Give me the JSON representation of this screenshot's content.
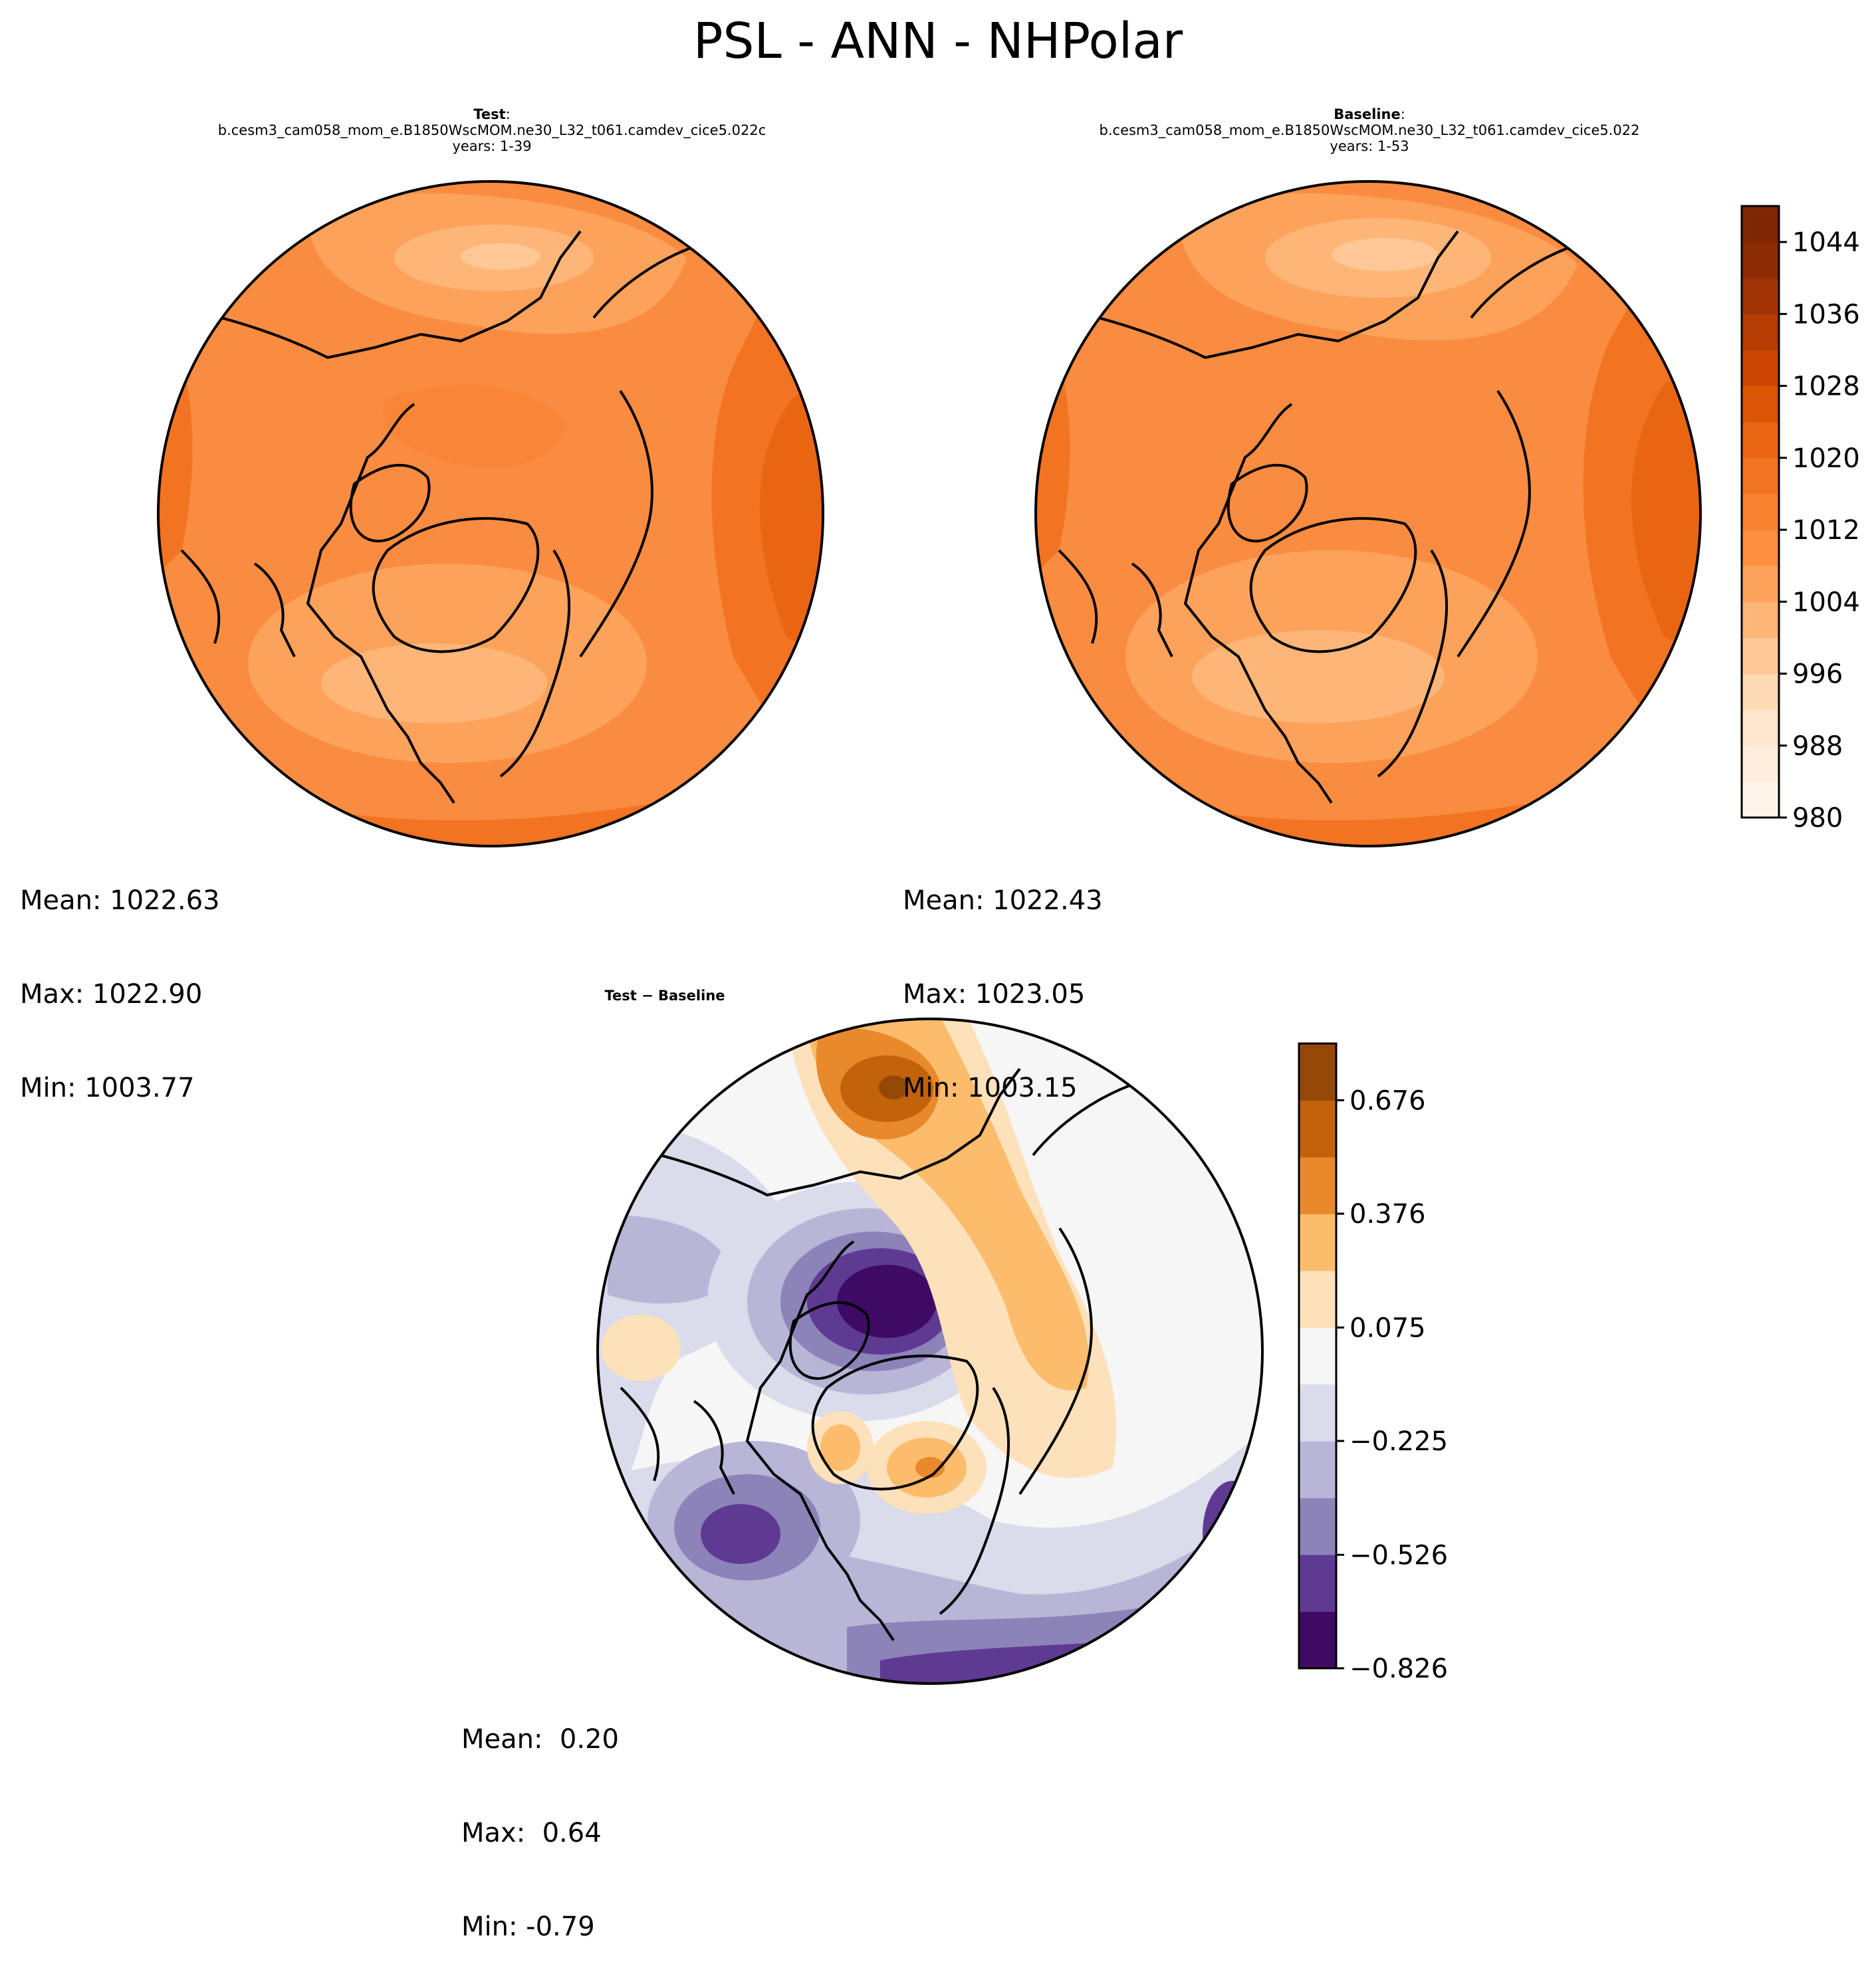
{
  "figure": {
    "title": "PSL - ANN - NHPolar"
  },
  "panels": {
    "test": {
      "heading": "Test",
      "colon": ":",
      "case": "b.cesm3_cam058_mom_e.B1850WscMOM.ne30_L32_t061.camdev_cice5.022c",
      "years": "years: 1-39",
      "stats": [
        "Mean: 1022.63",
        "Max: 1022.90",
        "Min: 1003.77"
      ]
    },
    "baseline": {
      "heading": "Baseline",
      "colon": ":",
      "case": "b.cesm3_cam058_mom_e.B1850WscMOM.ne30_L32_t061.camdev_cice5.022",
      "years": "years: 1-53",
      "stats": [
        "Mean: 1022.43",
        "Max: 1023.05",
        "Min: 1003.15"
      ]
    },
    "diff": {
      "heading": "Test − Baseline",
      "stats": [
        "Mean:  0.20",
        "Max:  0.64",
        "Min: -0.79"
      ]
    }
  },
  "colors": {
    "field_base": "#f98c40",
    "field_dark": "#f0701e",
    "field_light": "#fdb27a",
    "field_lightest": "#fdc797",
    "coast": "#000000"
  },
  "chart_data": [
    {
      "type": "heatmap",
      "name": "Test PSL",
      "projection": "North Polar Stereographic",
      "colorbar_ticks": [
        980,
        988,
        996,
        1004,
        1012,
        1020,
        1028,
        1036,
        1044
      ],
      "colorbar_range": [
        980,
        1048
      ],
      "colorbar_levels": 17,
      "colormap": [
        "#fff5eb",
        "#feeddc",
        "#fee6ce",
        "#fdd9b4",
        "#fdc895",
        "#fdb678",
        "#fda25b",
        "#fd8f3e",
        "#f98230",
        "#f27321",
        "#ea6512",
        "#dc5506",
        "#cc4502",
        "#b53c02",
        "#9f3303",
        "#8c2b04",
        "#7f2704"
      ],
      "stats": {
        "mean": 1022.63,
        "max": 1022.9,
        "min": 1003.77
      }
    },
    {
      "type": "heatmap",
      "name": "Baseline PSL",
      "projection": "North Polar Stereographic",
      "colorbar_ticks": [
        980,
        988,
        996,
        1004,
        1012,
        1020,
        1028,
        1036,
        1044
      ],
      "colorbar_range": [
        980,
        1048
      ],
      "stats": {
        "mean": 1022.43,
        "max": 1023.05,
        "min": 1003.15
      }
    },
    {
      "type": "heatmap",
      "name": "Test - Baseline",
      "projection": "North Polar Stereographic",
      "colorbar_ticks": [
        0.676,
        0.376,
        0.075,
        -0.225,
        -0.526,
        -0.826
      ],
      "colorbar_tick_labels": [
        "0.676",
        "0.376",
        "0.075",
        "−0.225",
        "−0.526",
        "−0.826"
      ],
      "colorbar_range": [
        -0.826,
        0.826
      ],
      "colorbar_levels": 11,
      "colormap": [
        "#3f0a63",
        "#5e3a93",
        "#8c83b8",
        "#b8b5d7",
        "#dadbeb",
        "#f6f6f6",
        "#fde1ba",
        "#fdbb6c",
        "#e8892b",
        "#c2620a",
        "#954806"
      ],
      "stats": {
        "mean": 0.2,
        "max": 0.64,
        "min": -0.79
      }
    }
  ]
}
